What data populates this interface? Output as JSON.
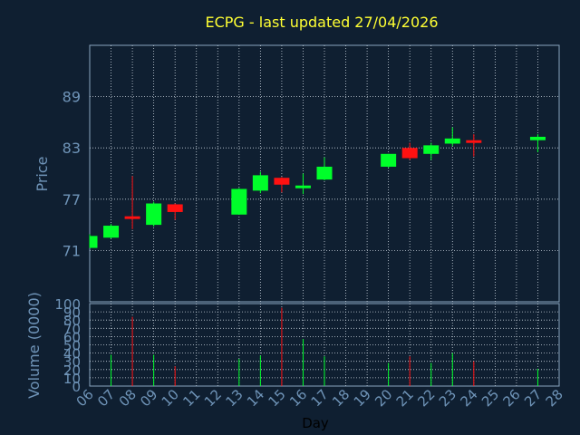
{
  "colors": {
    "background": "#0f1f31",
    "text_title": "#ffff33",
    "axis_text": "#6f94b8",
    "axis_line": "#8aa5c0",
    "grid": "#c8d2dc",
    "up": "#00ff2a",
    "down": "#ff1111",
    "xlabel_text": "#000000"
  },
  "chart_data": [
    {
      "type": "candlestick",
      "title": "ECPG - last updated 27/04/2026",
      "ylabel": "Price",
      "ylim": [
        65,
        95
      ],
      "yticks": [
        71,
        77,
        83,
        89
      ],
      "categories": [
        "06",
        "07",
        "08",
        "09",
        "10",
        "11",
        "12",
        "13",
        "14",
        "15",
        "16",
        "17",
        "18",
        "19",
        "20",
        "21",
        "22",
        "23",
        "24",
        "25",
        "26",
        "27",
        "28"
      ],
      "grid": true,
      "candles": [
        {
          "x": "06",
          "open": 71.3,
          "high": 72.9,
          "low": 71.3,
          "close": 72.7,
          "dir": "up"
        },
        {
          "x": "07",
          "open": 72.5,
          "high": 74.1,
          "low": 72.4,
          "close": 73.9,
          "dir": "up"
        },
        {
          "x": "08",
          "open": 75.0,
          "high": 79.7,
          "low": 73.5,
          "close": 74.7,
          "dir": "down"
        },
        {
          "x": "09",
          "open": 74.0,
          "high": 76.7,
          "low": 73.8,
          "close": 76.5,
          "dir": "up"
        },
        {
          "x": "10",
          "open": 76.4,
          "high": 76.5,
          "low": 74.6,
          "close": 75.5,
          "dir": "down"
        },
        {
          "x": "13",
          "open": 75.2,
          "high": 78.3,
          "low": 75.2,
          "close": 78.2,
          "dir": "up"
        },
        {
          "x": "14",
          "open": 78.0,
          "high": 80.2,
          "low": 77.7,
          "close": 79.8,
          "dir": "up"
        },
        {
          "x": "15",
          "open": 79.5,
          "high": 79.6,
          "low": 77.8,
          "close": 78.7,
          "dir": "down"
        },
        {
          "x": "16",
          "open": 78.4,
          "high": 80.0,
          "low": 77.6,
          "close": 78.6,
          "dir": "up"
        },
        {
          "x": "17",
          "open": 79.3,
          "high": 81.9,
          "low": 79.2,
          "close": 80.8,
          "dir": "up"
        },
        {
          "x": "20",
          "open": 80.8,
          "high": 82.3,
          "low": 80.7,
          "close": 82.3,
          "dir": "up"
        },
        {
          "x": "21",
          "open": 83.0,
          "high": 83.6,
          "low": 81.6,
          "close": 81.8,
          "dir": "down"
        },
        {
          "x": "22",
          "open": 82.3,
          "high": 83.6,
          "low": 81.6,
          "close": 83.3,
          "dir": "up"
        },
        {
          "x": "23",
          "open": 83.5,
          "high": 85.4,
          "low": 83.2,
          "close": 84.1,
          "dir": "up"
        },
        {
          "x": "24",
          "open": 83.9,
          "high": 84.6,
          "low": 82.0,
          "close": 83.7,
          "dir": "down"
        },
        {
          "x": "27",
          "open": 83.9,
          "high": 84.6,
          "low": 82.5,
          "close": 84.3,
          "dir": "up"
        }
      ]
    },
    {
      "type": "bar",
      "ylabel": "Volume (0000)",
      "xlabel": "Day",
      "ylim": [
        0,
        100
      ],
      "yticks": [
        0,
        10,
        20,
        30,
        40,
        50,
        60,
        70,
        80,
        90,
        100
      ],
      "categories": [
        "06",
        "07",
        "08",
        "09",
        "10",
        "11",
        "12",
        "13",
        "14",
        "15",
        "16",
        "17",
        "18",
        "19",
        "20",
        "21",
        "22",
        "23",
        "24",
        "25",
        "26",
        "27",
        "28"
      ],
      "grid": true,
      "bars": [
        {
          "x": "07",
          "value": 38,
          "dir": "up"
        },
        {
          "x": "08",
          "value": 84,
          "dir": "down"
        },
        {
          "x": "09",
          "value": 38,
          "dir": "up"
        },
        {
          "x": "10",
          "value": 24,
          "dir": "down"
        },
        {
          "x": "13",
          "value": 33,
          "dir": "up"
        },
        {
          "x": "14",
          "value": 37,
          "dir": "up"
        },
        {
          "x": "15",
          "value": 95,
          "dir": "down"
        },
        {
          "x": "16",
          "value": 57,
          "dir": "up"
        },
        {
          "x": "17",
          "value": 36,
          "dir": "up"
        },
        {
          "x": "20",
          "value": 28,
          "dir": "up"
        },
        {
          "x": "21",
          "value": 36,
          "dir": "down"
        },
        {
          "x": "22",
          "value": 28,
          "dir": "up"
        },
        {
          "x": "23",
          "value": 40,
          "dir": "up"
        },
        {
          "x": "24",
          "value": 30,
          "dir": "down"
        },
        {
          "x": "27",
          "value": 21,
          "dir": "up"
        }
      ]
    }
  ]
}
